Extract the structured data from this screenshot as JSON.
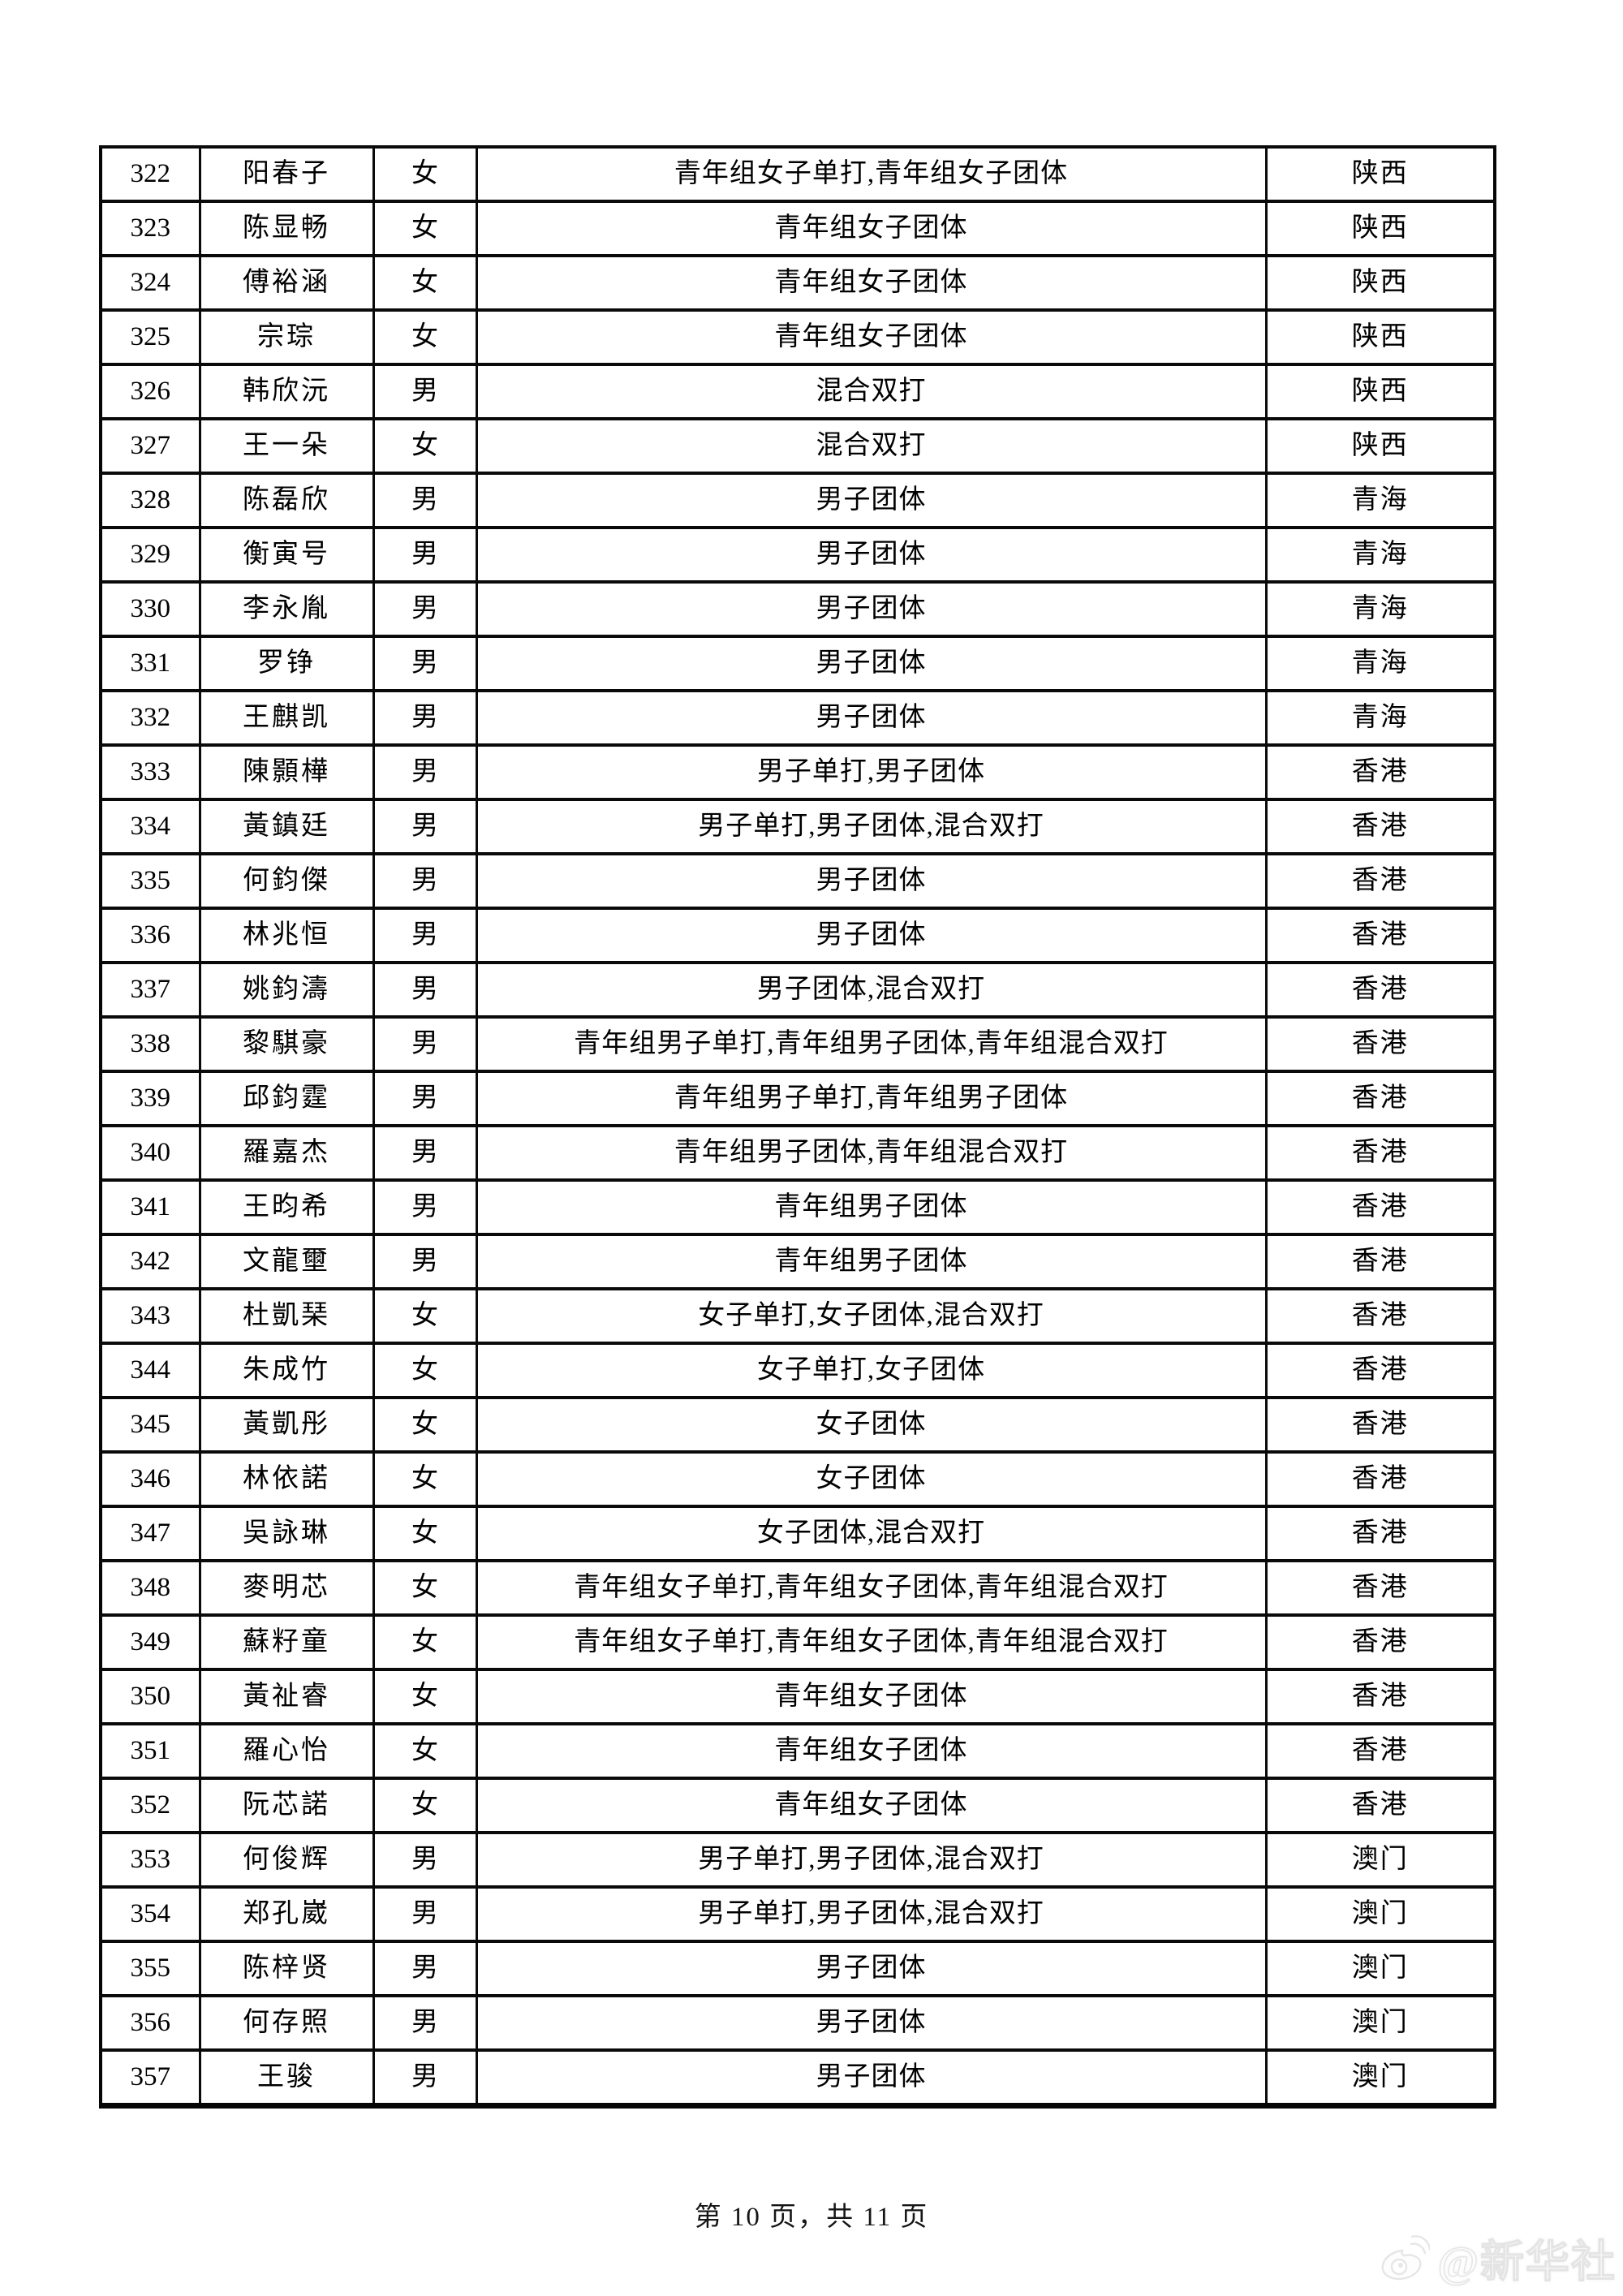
{
  "footer": {
    "page_label": "第 10 页，共 11 页"
  },
  "watermark": {
    "handle": "@新华社",
    "logo": "weibo-logo"
  },
  "table": {
    "rows": [
      {
        "no": "322",
        "name": "阳春子",
        "gender": "女",
        "events": "青年组女子单打,青年组女子团体",
        "region": "陕西"
      },
      {
        "no": "323",
        "name": "陈显畅",
        "gender": "女",
        "events": "青年组女子团体",
        "region": "陕西"
      },
      {
        "no": "324",
        "name": "傅裕涵",
        "gender": "女",
        "events": "青年组女子团体",
        "region": "陕西"
      },
      {
        "no": "325",
        "name": "宗琮",
        "gender": "女",
        "events": "青年组女子团体",
        "region": "陕西"
      },
      {
        "no": "326",
        "name": "韩欣沅",
        "gender": "男",
        "events": "混合双打",
        "region": "陕西"
      },
      {
        "no": "327",
        "name": "王一朵",
        "gender": "女",
        "events": "混合双打",
        "region": "陕西"
      },
      {
        "no": "328",
        "name": "陈磊欣",
        "gender": "男",
        "events": "男子团体",
        "region": "青海"
      },
      {
        "no": "329",
        "name": "衡寅号",
        "gender": "男",
        "events": "男子团体",
        "region": "青海"
      },
      {
        "no": "330",
        "name": "李永胤",
        "gender": "男",
        "events": "男子团体",
        "region": "青海"
      },
      {
        "no": "331",
        "name": "罗铮",
        "gender": "男",
        "events": "男子团体",
        "region": "青海"
      },
      {
        "no": "332",
        "name": "王麒凯",
        "gender": "男",
        "events": "男子团体",
        "region": "青海"
      },
      {
        "no": "333",
        "name": "陳顥樺",
        "gender": "男",
        "events": "男子单打,男子团体",
        "region": "香港"
      },
      {
        "no": "334",
        "name": "黃鎮廷",
        "gender": "男",
        "events": "男子单打,男子团体,混合双打",
        "region": "香港"
      },
      {
        "no": "335",
        "name": "何鈞傑",
        "gender": "男",
        "events": "男子团体",
        "region": "香港"
      },
      {
        "no": "336",
        "name": "林兆恒",
        "gender": "男",
        "events": "男子团体",
        "region": "香港"
      },
      {
        "no": "337",
        "name": "姚鈞濤",
        "gender": "男",
        "events": "男子团体,混合双打",
        "region": "香港"
      },
      {
        "no": "338",
        "name": "黎騏豪",
        "gender": "男",
        "events": "青年组男子单打,青年组男子团体,青年组混合双打",
        "region": "香港"
      },
      {
        "no": "339",
        "name": "邱鈞霆",
        "gender": "男",
        "events": "青年组男子单打,青年组男子团体",
        "region": "香港"
      },
      {
        "no": "340",
        "name": "羅嘉杰",
        "gender": "男",
        "events": "青年组男子团体,青年组混合双打",
        "region": "香港"
      },
      {
        "no": "341",
        "name": "王昀希",
        "gender": "男",
        "events": "青年组男子团体",
        "region": "香港"
      },
      {
        "no": "342",
        "name": "文龍壐",
        "gender": "男",
        "events": "青年组男子团体",
        "region": "香港"
      },
      {
        "no": "343",
        "name": "杜凱琹",
        "gender": "女",
        "events": "女子单打,女子团体,混合双打",
        "region": "香港"
      },
      {
        "no": "344",
        "name": "朱成竹",
        "gender": "女",
        "events": "女子单打,女子团体",
        "region": "香港"
      },
      {
        "no": "345",
        "name": "黃凱彤",
        "gender": "女",
        "events": "女子团体",
        "region": "香港"
      },
      {
        "no": "346",
        "name": "林依諾",
        "gender": "女",
        "events": "女子团体",
        "region": "香港"
      },
      {
        "no": "347",
        "name": "吳詠琳",
        "gender": "女",
        "events": "女子团体,混合双打",
        "region": "香港"
      },
      {
        "no": "348",
        "name": "麥明芯",
        "gender": "女",
        "events": "青年组女子单打,青年组女子团体,青年组混合双打",
        "region": "香港"
      },
      {
        "no": "349",
        "name": "蘇籽童",
        "gender": "女",
        "events": "青年组女子单打,青年组女子团体,青年组混合双打",
        "region": "香港"
      },
      {
        "no": "350",
        "name": "黃祉睿",
        "gender": "女",
        "events": "青年组女子团体",
        "region": "香港"
      },
      {
        "no": "351",
        "name": "羅心怡",
        "gender": "女",
        "events": "青年组女子团体",
        "region": "香港"
      },
      {
        "no": "352",
        "name": "阮芯諾",
        "gender": "女",
        "events": "青年组女子团体",
        "region": "香港"
      },
      {
        "no": "353",
        "name": "何俊辉",
        "gender": "男",
        "events": "男子单打,男子团体,混合双打",
        "region": "澳门"
      },
      {
        "no": "354",
        "name": "郑孔崴",
        "gender": "男",
        "events": "男子单打,男子团体,混合双打",
        "region": "澳门"
      },
      {
        "no": "355",
        "name": "陈梓贤",
        "gender": "男",
        "events": "男子团体",
        "region": "澳门"
      },
      {
        "no": "356",
        "name": "何存照",
        "gender": "男",
        "events": "男子团体",
        "region": "澳门"
      },
      {
        "no": "357",
        "name": "王骏",
        "gender": "男",
        "events": "男子团体",
        "region": "澳门"
      }
    ]
  }
}
